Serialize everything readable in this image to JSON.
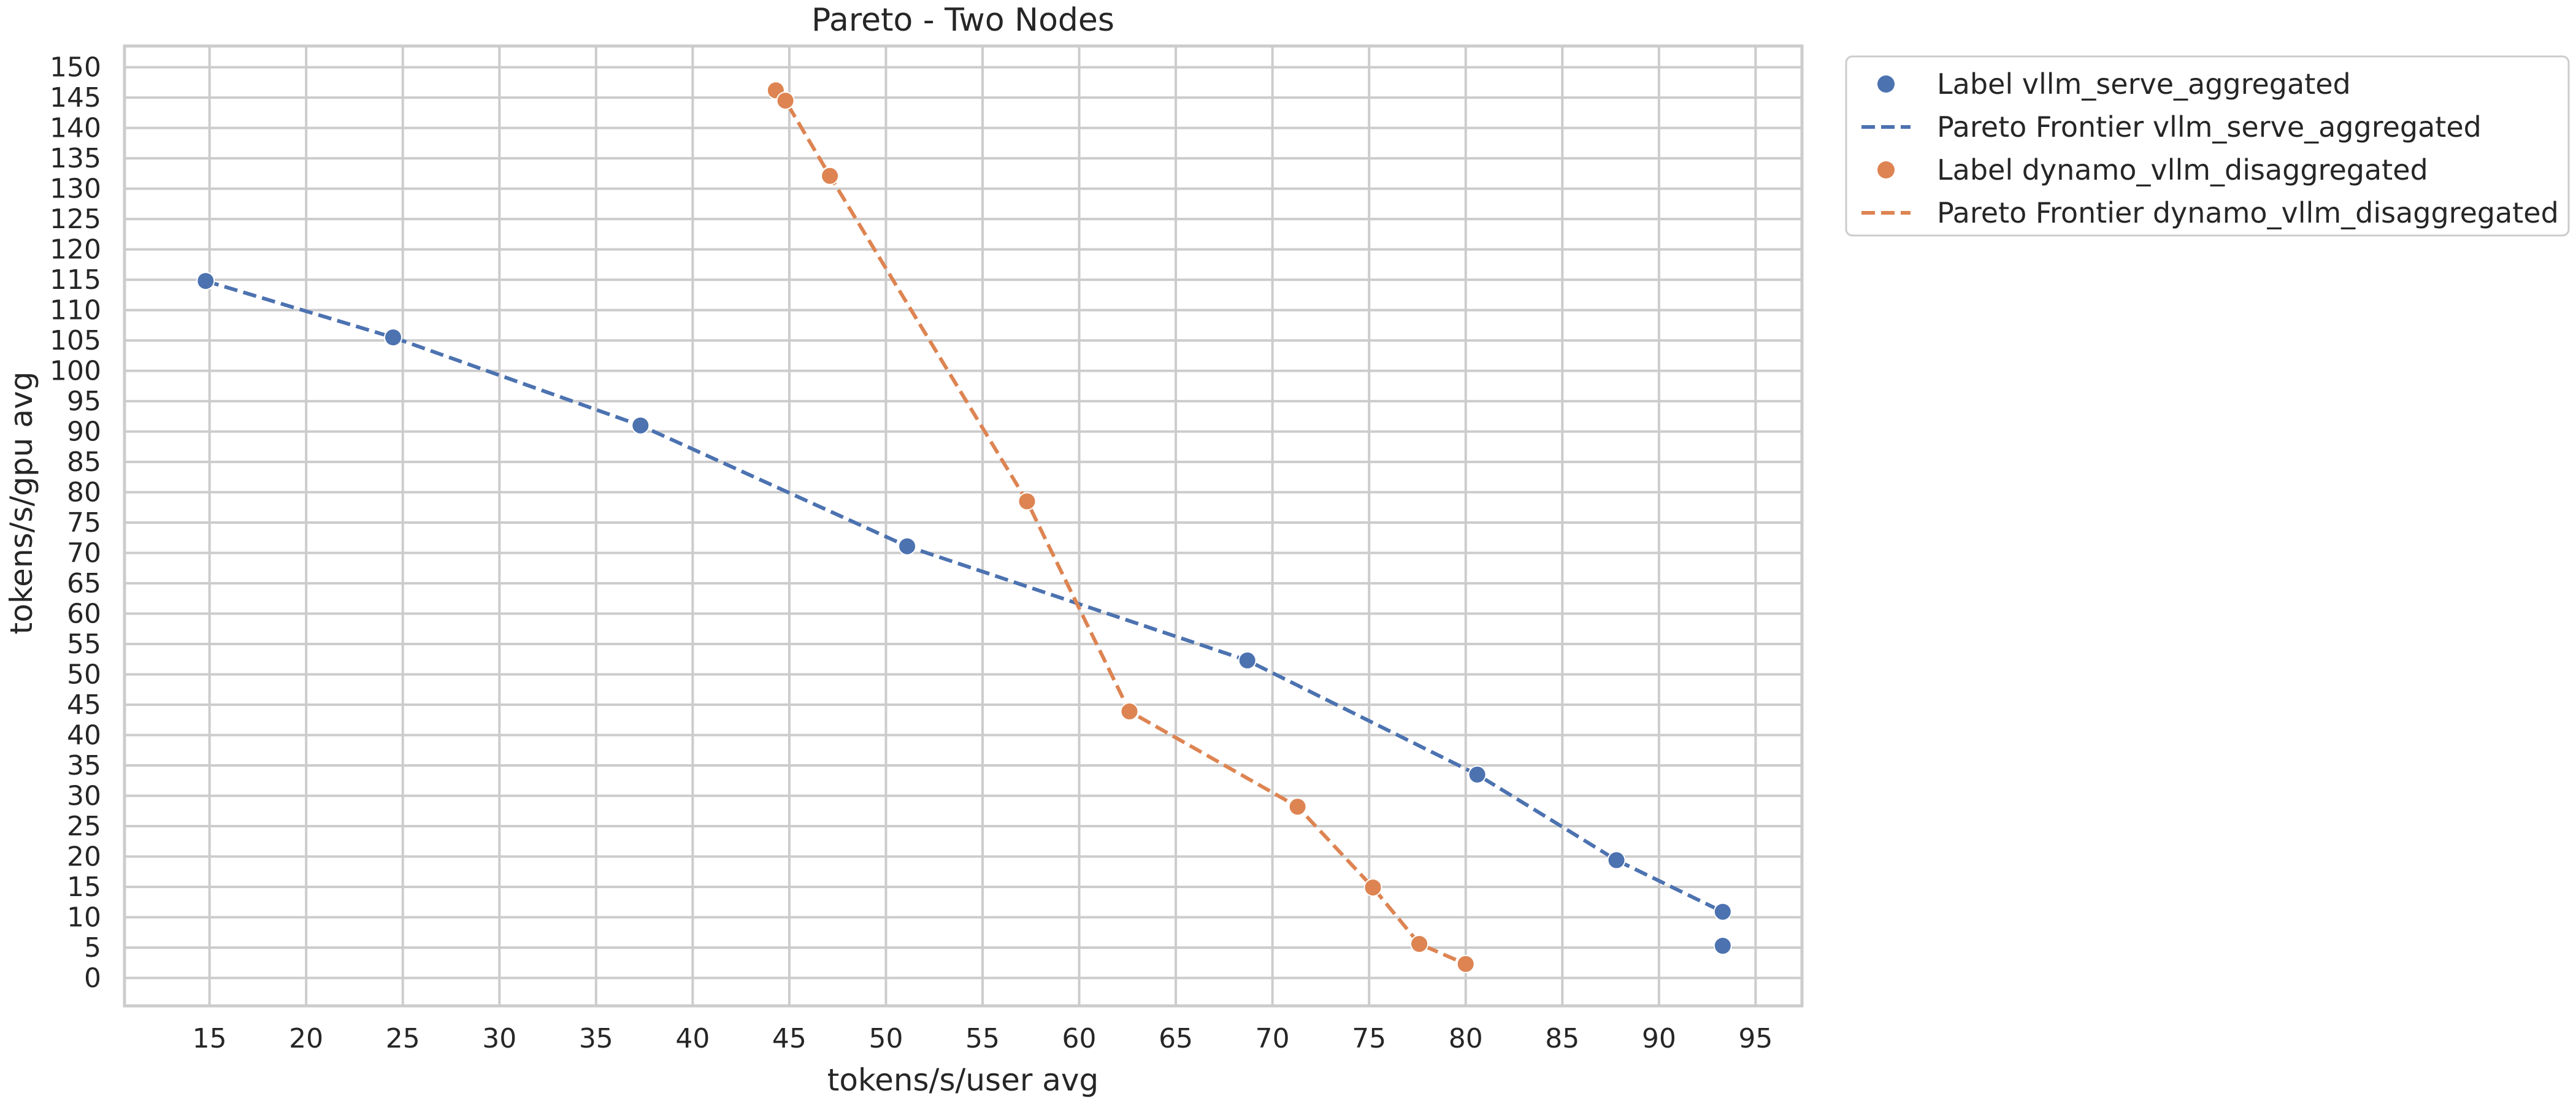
{
  "chart_data": {
    "type": "scatter",
    "title": "Pareto - Two Nodes",
    "xlabel": "tokens/s/user avg",
    "ylabel": "tokens/s/gpu avg",
    "xlim": [
      10.6,
      97.4
    ],
    "ylim": [
      -4.6,
      153.5
    ],
    "xticks": [
      15,
      20,
      25,
      30,
      35,
      40,
      45,
      50,
      55,
      60,
      65,
      70,
      75,
      80,
      85,
      90,
      95
    ],
    "yticks": [
      0,
      5,
      10,
      15,
      20,
      25,
      30,
      35,
      40,
      45,
      50,
      55,
      60,
      65,
      70,
      75,
      80,
      85,
      90,
      95,
      100,
      105,
      110,
      115,
      120,
      125,
      130,
      135,
      140,
      145,
      150
    ],
    "grid": true,
    "legend_position": "outside-top-right",
    "series": [
      {
        "label": "Label vllm_serve_aggregated",
        "frontier_label": "Pareto Frontier vllm_serve_aggregated",
        "color": "#4C72B0",
        "points": [
          {
            "x": 14.8,
            "y": 114.8
          },
          {
            "x": 24.5,
            "y": 105.5
          },
          {
            "x": 37.3,
            "y": 91.0
          },
          {
            "x": 51.1,
            "y": 71.1
          },
          {
            "x": 68.7,
            "y": 52.3
          },
          {
            "x": 80.6,
            "y": 33.5
          },
          {
            "x": 87.8,
            "y": 19.4
          },
          {
            "x": 93.3,
            "y": 10.9
          },
          {
            "x": 93.3,
            "y": 5.3
          }
        ],
        "frontier": [
          {
            "x": 14.8,
            "y": 114.8
          },
          {
            "x": 24.5,
            "y": 105.5
          },
          {
            "x": 37.3,
            "y": 91.0
          },
          {
            "x": 51.1,
            "y": 71.1
          },
          {
            "x": 68.7,
            "y": 52.3
          },
          {
            "x": 80.6,
            "y": 33.5
          },
          {
            "x": 87.8,
            "y": 19.4
          },
          {
            "x": 93.3,
            "y": 10.9
          }
        ]
      },
      {
        "label": "Label dynamo_vllm_disaggregated",
        "frontier_label": "Pareto Frontier dynamo_vllm_disaggregated",
        "color": "#DD8452",
        "points": [
          {
            "x": 44.3,
            "y": 146.2
          },
          {
            "x": 44.8,
            "y": 144.5
          },
          {
            "x": 47.1,
            "y": 132.1
          },
          {
            "x": 57.3,
            "y": 78.5
          },
          {
            "x": 62.6,
            "y": 43.9
          },
          {
            "x": 71.3,
            "y": 28.2
          },
          {
            "x": 75.2,
            "y": 14.9
          },
          {
            "x": 77.6,
            "y": 5.6
          },
          {
            "x": 80.0,
            "y": 2.3
          }
        ],
        "frontier": [
          {
            "x": 44.3,
            "y": 146.2
          },
          {
            "x": 44.8,
            "y": 144.5
          },
          {
            "x": 47.1,
            "y": 132.1
          },
          {
            "x": 57.3,
            "y": 78.5
          },
          {
            "x": 62.6,
            "y": 43.9
          },
          {
            "x": 71.3,
            "y": 28.2
          },
          {
            "x": 75.2,
            "y": 14.9
          },
          {
            "x": 77.6,
            "y": 5.6
          },
          {
            "x": 80.0,
            "y": 2.3
          }
        ]
      }
    ]
  }
}
